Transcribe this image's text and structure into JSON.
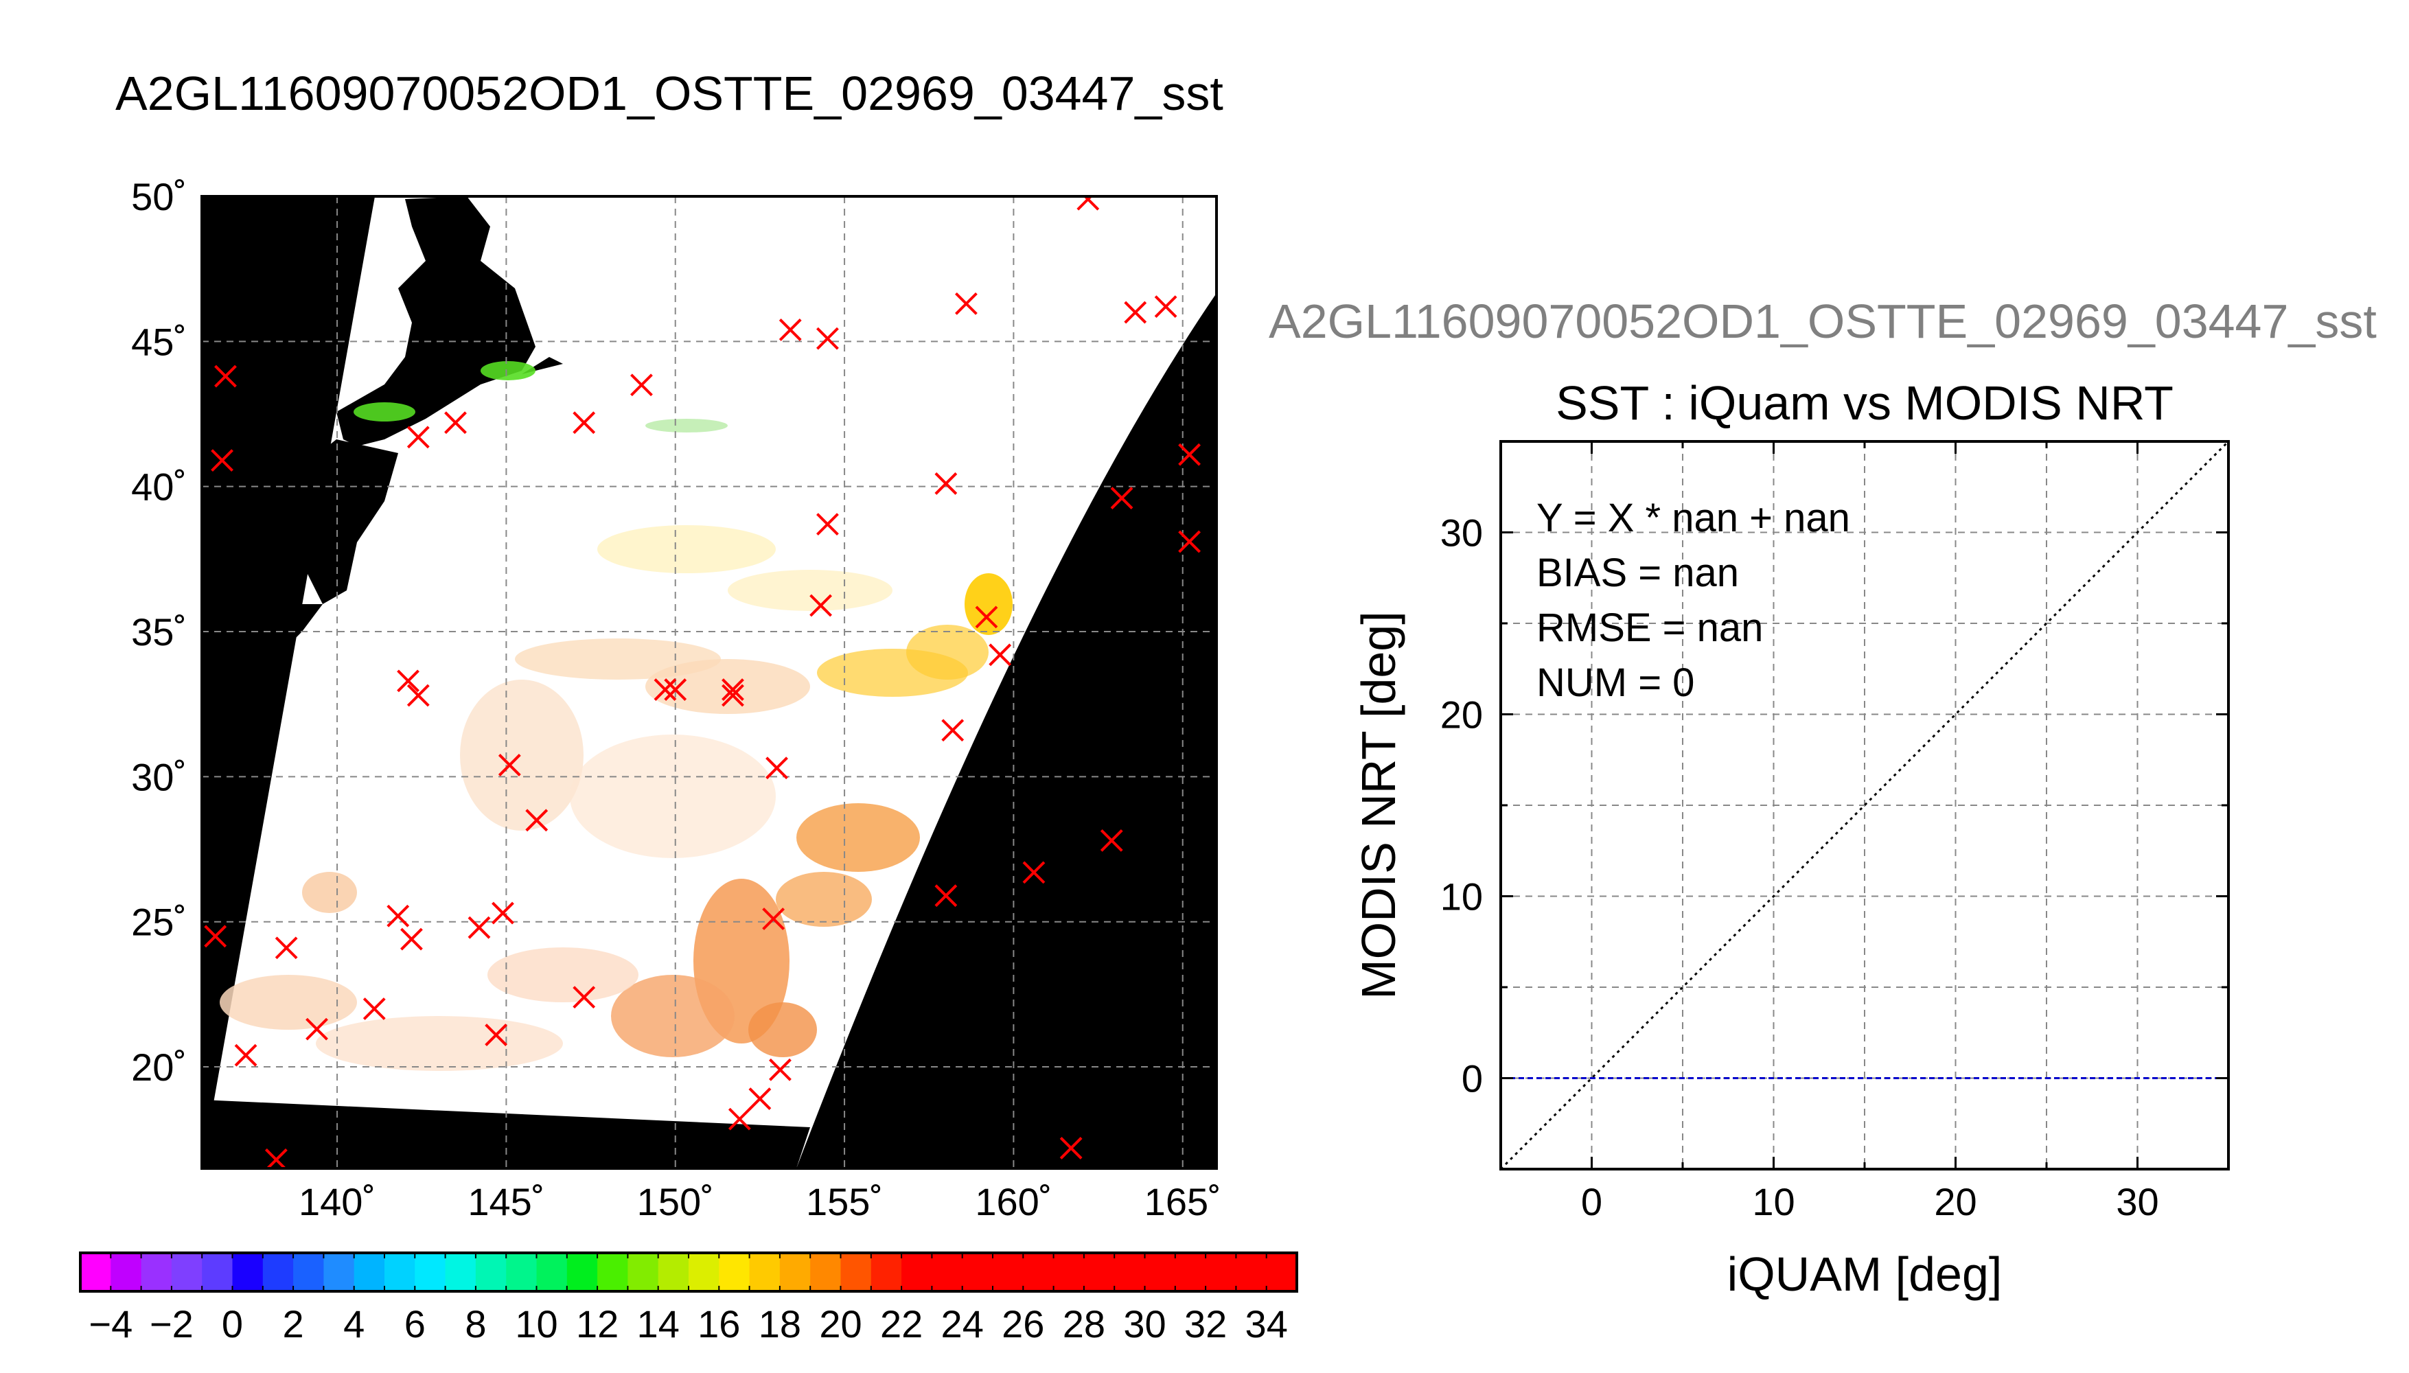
{
  "map_title": "A2GL11609070052OD1_OSTTE_02969_03447_sst",
  "scatter_file_title": "A2GL11609070052OD1_OSTTE_02969_03447_sst",
  "chart_data": [
    {
      "type": "map",
      "title": "A2GL11609070052OD1_OSTTE_02969_03447_sst",
      "lon_range": [
        136,
        166
      ],
      "lat_range": [
        16.5,
        50
      ],
      "lon_ticks": [
        140,
        145,
        150,
        155,
        160,
        165
      ],
      "lat_ticks": [
        20,
        25,
        30,
        35,
        40,
        45,
        50
      ],
      "lon_tick_labels": [
        "140˚",
        "145˚",
        "150˚",
        "155˚",
        "160˚",
        "165˚"
      ],
      "lat_tick_labels": [
        "20˚",
        "25˚",
        "30˚",
        "35˚",
        "40˚",
        "45˚",
        "50˚"
      ],
      "grid": true,
      "markers": {
        "symbol": "x",
        "color": "#ff0000",
        "points": [
          [
            136.7,
            43.8
          ],
          [
            136.6,
            40.9
          ],
          [
            136.4,
            24.5
          ],
          [
            137.3,
            20.4
          ],
          [
            138.2,
            16.8
          ],
          [
            138.5,
            24.1
          ],
          [
            139.4,
            21.3
          ],
          [
            141.1,
            22.0
          ],
          [
            141.8,
            25.2
          ],
          [
            142.2,
            24.4
          ],
          [
            142.4,
            41.7
          ],
          [
            142.1,
            33.3
          ],
          [
            142.4,
            32.8
          ],
          [
            143.5,
            42.2
          ],
          [
            144.2,
            24.8
          ],
          [
            144.7,
            21.1
          ],
          [
            144.9,
            25.3
          ],
          [
            145.1,
            30.4
          ],
          [
            145.9,
            28.5
          ],
          [
            147.3,
            42.2
          ],
          [
            147.3,
            22.4
          ],
          [
            149.0,
            43.5
          ],
          [
            149.7,
            33.0
          ],
          [
            150.0,
            33.0
          ],
          [
            151.7,
            33.0
          ],
          [
            151.7,
            32.8
          ],
          [
            151.9,
            18.2
          ],
          [
            152.5,
            18.9
          ],
          [
            152.9,
            25.1
          ],
          [
            153.0,
            30.3
          ],
          [
            153.1,
            19.9
          ],
          [
            153.4,
            45.4
          ],
          [
            154.3,
            35.9
          ],
          [
            154.5,
            38.7
          ],
          [
            154.5,
            45.1
          ],
          [
            158.0,
            40.1
          ],
          [
            158.0,
            25.9
          ],
          [
            158.2,
            31.6
          ],
          [
            158.6,
            46.3
          ],
          [
            159.2,
            35.5
          ],
          [
            159.6,
            34.2
          ],
          [
            160.6,
            26.7
          ],
          [
            161.7,
            17.2
          ],
          [
            162.2,
            49.9
          ],
          [
            162.9,
            27.8
          ],
          [
            163.2,
            39.6
          ],
          [
            163.6,
            46.0
          ],
          [
            164.5,
            46.2
          ],
          [
            165.2,
            41.1
          ],
          [
            165.2,
            38.1
          ]
        ]
      },
      "colorbar": {
        "min": -5,
        "max": 35,
        "step": 1,
        "tick_labels": [
          "−4",
          "−2",
          "0",
          "2",
          "4",
          "6",
          "8",
          "10",
          "12",
          "14",
          "16",
          "18",
          "20",
          "22",
          "24",
          "26",
          "28",
          "30",
          "32",
          "34"
        ],
        "colors": [
          "#ff00ff",
          "#c000ff",
          "#9a30ff",
          "#7f3fff",
          "#5d3cff",
          "#1a00ff",
          "#1e3cff",
          "#1a61ff",
          "#1f8cff",
          "#00b4ff",
          "#00d2ff",
          "#00e8ff",
          "#00f5e3",
          "#00f6b4",
          "#00f58c",
          "#00f25c",
          "#00ee1e",
          "#4aef00",
          "#82ec00",
          "#b4ec00",
          "#dcee00",
          "#ffe600",
          "#ffca00",
          "#ffaa00",
          "#ff8800",
          "#ff5500",
          "#ff2200",
          "#ff0000",
          "#ff0000",
          "#ff0000",
          "#ff0000",
          "#ff0000",
          "#ff0000",
          "#ff0000",
          "#ff0000",
          "#ff0000",
          "#ff0000",
          "#ff0000",
          "#ff0000",
          "#ff0000"
        ]
      }
    },
    {
      "type": "scatter",
      "title": "SST : iQuam vs MODIS NRT",
      "xlabel": "iQUAM [deg]",
      "ylabel": "MODIS NRT [deg]",
      "xlim": [
        -5,
        35
      ],
      "ylim": [
        -5,
        35
      ],
      "x_ticks": [
        0,
        10,
        20,
        30
      ],
      "y_ticks": [
        0,
        10,
        20,
        30
      ],
      "grid": true,
      "lines": [
        {
          "style": "dotted",
          "color": "#000000",
          "x": [
            -5,
            35
          ],
          "y": [
            -5,
            35
          ]
        },
        {
          "style": "dashed",
          "color": "#0000cc",
          "x": [
            -5,
            35
          ],
          "y": [
            0,
            0
          ]
        }
      ],
      "points": [],
      "annotations": [
        "Y = X * nan + nan",
        "BIAS = nan",
        "RMSE = nan",
        "NUM = 0"
      ]
    }
  ]
}
